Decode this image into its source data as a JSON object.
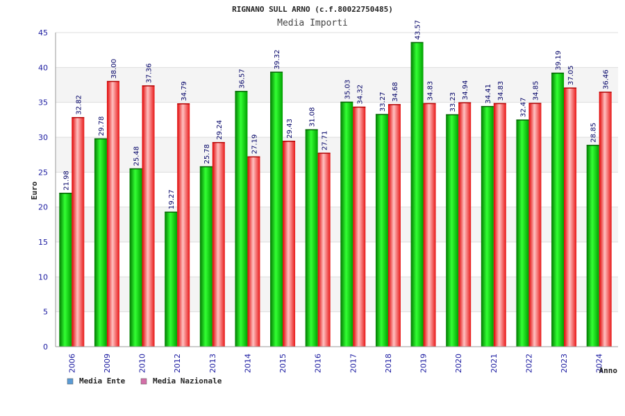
{
  "chart_data": {
    "type": "bar",
    "title": "RIGNANO SULL ARNO (c.f.80022750485)",
    "subtitle": "Media Importi",
    "xlabel": "Anno",
    "ylabel": "Euro",
    "ylim": [
      0,
      45
    ],
    "yticks": [
      0,
      5,
      10,
      15,
      20,
      25,
      30,
      35,
      40,
      45
    ],
    "grid": true,
    "legend_position": "bottom-left",
    "categories": [
      "2006",
      "2009",
      "2010",
      "2012",
      "2013",
      "2014",
      "2015",
      "2016",
      "2017",
      "2018",
      "2019",
      "2020",
      "2021",
      "2022",
      "2023",
      "2024"
    ],
    "series": [
      {
        "name": "Media Ente",
        "color": "#00b000",
        "legend_color": "#5b9bd5",
        "values": [
          21.98,
          29.78,
          25.48,
          19.27,
          25.78,
          36.57,
          39.32,
          31.08,
          35.03,
          33.27,
          43.57,
          33.23,
          34.41,
          32.47,
          39.19,
          28.85
        ],
        "labels": [
          "21.98",
          "29.78",
          "25.48",
          "19.27",
          "25.78",
          "36.57",
          "39.32",
          "31.08",
          "35.03",
          "33.27",
          "43.57",
          "33.23",
          "34.41",
          "32.47",
          "39.19",
          "28.85"
        ]
      },
      {
        "name": "Media Nazionale",
        "color": "#e81010",
        "legend_color": "#d36fa8",
        "values": [
          32.82,
          38.0,
          37.36,
          34.79,
          29.24,
          27.19,
          29.43,
          27.71,
          34.32,
          34.68,
          34.83,
          34.94,
          34.83,
          34.85,
          37.05,
          36.46
        ],
        "labels": [
          "32.82",
          "38.00",
          "37.36",
          "34.79",
          "29.24",
          "27.19",
          "29.43",
          "27.71",
          "34.32",
          "34.68",
          "34.83",
          "34.94",
          "34.83",
          "34.85",
          "37.05",
          "36.46"
        ]
      }
    ]
  }
}
